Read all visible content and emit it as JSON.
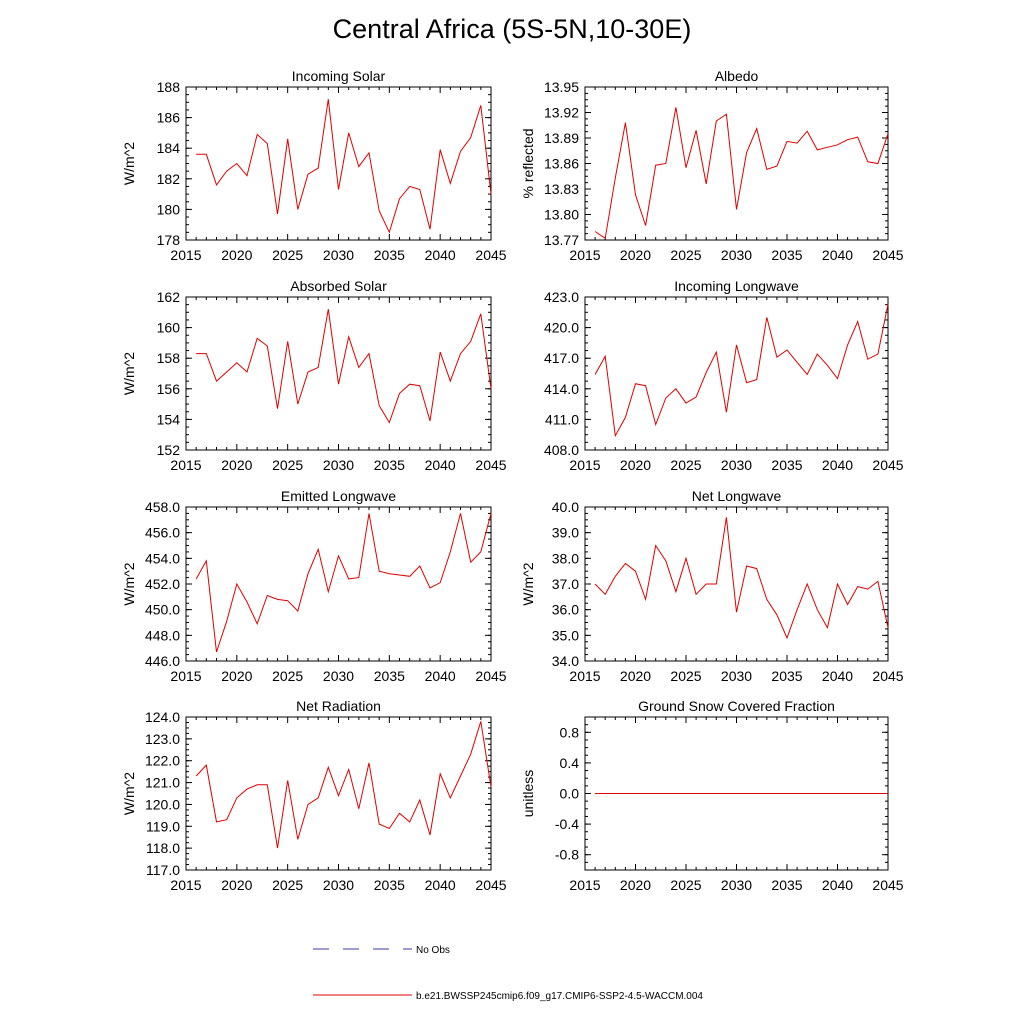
{
  "title": "Central Africa (5S-5N,10-30E)",
  "legend": {
    "obs_label": "No Obs",
    "obs_color": "#3a3aa0",
    "model_label": "b.e21.BWSSP245cmip6.f09_g17.CMIP6-SSP2-4.5-WACCM.004",
    "model_color": "#e00000"
  },
  "chart_data": [
    {
      "type": "line",
      "title": "Incoming Solar",
      "ylabel": "W/m^2",
      "xlim": [
        2015,
        2045
      ],
      "ylim": [
        178,
        188
      ],
      "xticks": [
        2015,
        2020,
        2025,
        2030,
        2035,
        2040,
        2045
      ],
      "yticks": [
        "178",
        "180",
        "182",
        "184",
        "186",
        "188"
      ],
      "x": [
        2016,
        2017,
        2018,
        2019,
        2020,
        2021,
        2022,
        2023,
        2024,
        2025,
        2026,
        2027,
        2028,
        2029,
        2030,
        2031,
        2032,
        2033,
        2034,
        2035,
        2036,
        2037,
        2038,
        2039,
        2040,
        2041,
        2042,
        2043,
        2044,
        2045
      ],
      "series": [
        {
          "values": [
            183.6,
            183.6,
            181.6,
            182.5,
            183.0,
            182.2,
            184.9,
            184.3,
            179.7,
            184.6,
            180.0,
            182.3,
            182.7,
            187.2,
            181.3,
            185.0,
            182.8,
            183.7,
            179.9,
            178.5,
            180.7,
            181.5,
            181.3,
            178.7,
            183.9,
            181.7,
            183.8,
            184.7,
            186.8,
            181.0
          ]
        }
      ]
    },
    {
      "type": "line",
      "title": "Albedo",
      "ylabel": "% reflected",
      "xlim": [
        2015,
        2045
      ],
      "ylim": [
        13.77,
        13.95
      ],
      "xticks": [
        2015,
        2020,
        2025,
        2030,
        2035,
        2040,
        2045
      ],
      "yticks": [
        "13.77",
        "13.80",
        "13.83",
        "13.86",
        "13.89",
        "13.92",
        "13.95"
      ],
      "x": [
        2016,
        2017,
        2018,
        2019,
        2020,
        2021,
        2022,
        2023,
        2024,
        2025,
        2026,
        2027,
        2028,
        2029,
        2030,
        2031,
        2032,
        2033,
        2034,
        2035,
        2036,
        2037,
        2038,
        2039,
        2040,
        2041,
        2042,
        2043,
        2044,
        2045
      ],
      "series": [
        {
          "values": [
            13.78,
            13.772,
            13.843,
            13.908,
            13.823,
            13.787,
            13.858,
            13.86,
            13.926,
            13.855,
            13.899,
            13.836,
            13.91,
            13.918,
            13.806,
            13.873,
            13.901,
            13.853,
            13.857,
            13.886,
            13.884,
            13.898,
            13.876,
            13.879,
            13.882,
            13.888,
            13.891,
            13.862,
            13.86,
            13.895
          ]
        }
      ]
    },
    {
      "type": "line",
      "title": "Absorbed Solar",
      "ylabel": "W/m^2",
      "xlim": [
        2015,
        2045
      ],
      "ylim": [
        152,
        162
      ],
      "xticks": [
        2015,
        2020,
        2025,
        2030,
        2035,
        2040,
        2045
      ],
      "yticks": [
        "152",
        "154",
        "156",
        "158",
        "160",
        "162"
      ],
      "x": [
        2016,
        2017,
        2018,
        2019,
        2020,
        2021,
        2022,
        2023,
        2024,
        2025,
        2026,
        2027,
        2028,
        2029,
        2030,
        2031,
        2032,
        2033,
        2034,
        2035,
        2036,
        2037,
        2038,
        2039,
        2040,
        2041,
        2042,
        2043,
        2044,
        2045
      ],
      "series": [
        {
          "values": [
            158.3,
            158.3,
            156.5,
            157.1,
            157.7,
            157.1,
            159.3,
            158.8,
            154.7,
            159.1,
            155.0,
            157.1,
            157.4,
            161.2,
            156.3,
            159.4,
            157.4,
            158.3,
            154.9,
            153.8,
            155.7,
            156.3,
            156.2,
            153.9,
            158.4,
            156.5,
            158.3,
            159.1,
            160.9,
            156.0
          ]
        }
      ]
    },
    {
      "type": "line",
      "title": "Incoming Longwave",
      "ylabel": "",
      "xlim": [
        2015,
        2045
      ],
      "ylim": [
        408.0,
        423.0
      ],
      "xticks": [
        2015,
        2020,
        2025,
        2030,
        2035,
        2040,
        2045
      ],
      "yticks": [
        "408.0",
        "411.0",
        "414.0",
        "417.0",
        "420.0",
        "423.0"
      ],
      "x": [
        2016,
        2017,
        2018,
        2019,
        2020,
        2021,
        2022,
        2023,
        2024,
        2025,
        2026,
        2027,
        2028,
        2029,
        2030,
        2031,
        2032,
        2033,
        2034,
        2035,
        2036,
        2037,
        2038,
        2039,
        2040,
        2041,
        2042,
        2043,
        2044,
        2045
      ],
      "series": [
        {
          "values": [
            415.4,
            417.2,
            409.4,
            411.2,
            414.5,
            414.3,
            410.5,
            413.1,
            414.0,
            412.6,
            413.2,
            415.6,
            417.6,
            411.7,
            418.3,
            414.6,
            414.9,
            421.0,
            417.1,
            417.8,
            416.6,
            415.4,
            417.4,
            416.3,
            415.0,
            418.3,
            420.6,
            416.9,
            417.4,
            422.3
          ]
        }
      ]
    },
    {
      "type": "line",
      "title": "Emitted Longwave",
      "ylabel": "W/m^2",
      "xlim": [
        2015,
        2045
      ],
      "ylim": [
        446.0,
        458.0
      ],
      "xticks": [
        2015,
        2020,
        2025,
        2030,
        2035,
        2040,
        2045
      ],
      "yticks": [
        "446.0",
        "448.0",
        "450.0",
        "452.0",
        "454.0",
        "456.0",
        "458.0"
      ],
      "x": [
        2016,
        2017,
        2018,
        2019,
        2020,
        2021,
        2022,
        2023,
        2024,
        2025,
        2026,
        2027,
        2028,
        2029,
        2030,
        2031,
        2032,
        2033,
        2034,
        2035,
        2036,
        2037,
        2038,
        2039,
        2040,
        2041,
        2042,
        2043,
        2044,
        2045
      ],
      "series": [
        {
          "values": [
            452.4,
            453.8,
            446.7,
            449.1,
            452.0,
            450.6,
            448.9,
            451.1,
            450.8,
            450.7,
            449.9,
            452.8,
            454.7,
            451.4,
            454.2,
            452.4,
            452.5,
            457.5,
            453.0,
            452.8,
            452.7,
            452.6,
            453.4,
            451.7,
            452.1,
            454.5,
            457.5,
            453.7,
            454.5,
            457.5
          ]
        }
      ]
    },
    {
      "type": "line",
      "title": "Net Longwave",
      "ylabel": "W/m^2",
      "xlim": [
        2015,
        2045
      ],
      "ylim": [
        34.0,
        40.0
      ],
      "xticks": [
        2015,
        2020,
        2025,
        2030,
        2035,
        2040,
        2045
      ],
      "yticks": [
        "34.0",
        "35.0",
        "36.0",
        "37.0",
        "38.0",
        "39.0",
        "40.0"
      ],
      "x": [
        2016,
        2017,
        2018,
        2019,
        2020,
        2021,
        2022,
        2023,
        2024,
        2025,
        2026,
        2027,
        2028,
        2029,
        2030,
        2031,
        2032,
        2033,
        2034,
        2035,
        2036,
        2037,
        2038,
        2039,
        2040,
        2041,
        2042,
        2043,
        2044,
        2045
      ],
      "series": [
        {
          "values": [
            37.0,
            36.6,
            37.3,
            37.8,
            37.5,
            36.4,
            38.5,
            37.9,
            36.7,
            38.0,
            36.6,
            37.0,
            37.0,
            39.6,
            35.9,
            37.7,
            37.6,
            36.4,
            35.8,
            34.9,
            36.0,
            37.0,
            36.0,
            35.3,
            37.0,
            36.2,
            36.9,
            36.8,
            37.1,
            35.3
          ]
        }
      ]
    },
    {
      "type": "line",
      "title": "Net Radiation",
      "ylabel": "W/m^2",
      "xlim": [
        2015,
        2045
      ],
      "ylim": [
        117.0,
        124.0
      ],
      "xticks": [
        2015,
        2020,
        2025,
        2030,
        2035,
        2040,
        2045
      ],
      "yticks": [
        "117.0",
        "118.0",
        "119.0",
        "120.0",
        "121.0",
        "122.0",
        "123.0",
        "124.0"
      ],
      "x": [
        2016,
        2017,
        2018,
        2019,
        2020,
        2021,
        2022,
        2023,
        2024,
        2025,
        2026,
        2027,
        2028,
        2029,
        2030,
        2031,
        2032,
        2033,
        2034,
        2035,
        2036,
        2037,
        2038,
        2039,
        2040,
        2041,
        2042,
        2043,
        2044,
        2045
      ],
      "series": [
        {
          "values": [
            121.3,
            121.8,
            119.2,
            119.3,
            120.3,
            120.7,
            120.9,
            120.9,
            118.0,
            121.1,
            118.4,
            120.0,
            120.3,
            121.7,
            120.4,
            121.6,
            119.8,
            121.9,
            119.1,
            118.9,
            119.6,
            119.2,
            120.2,
            118.6,
            121.4,
            120.3,
            121.3,
            122.3,
            123.8,
            120.8
          ]
        }
      ]
    },
    {
      "type": "line",
      "title": "Ground Snow Covered Fraction",
      "ylabel": "unitless",
      "xlim": [
        2015,
        2045
      ],
      "ylim": [
        -1.0,
        1.0
      ],
      "xticks": [
        2015,
        2020,
        2025,
        2030,
        2035,
        2040,
        2045
      ],
      "yticks": [
        "-0.8",
        "-0.4",
        "0.0",
        "0.4",
        "0.8"
      ],
      "x": [
        2016,
        2017,
        2018,
        2019,
        2020,
        2021,
        2022,
        2023,
        2024,
        2025,
        2026,
        2027,
        2028,
        2029,
        2030,
        2031,
        2032,
        2033,
        2034,
        2035,
        2036,
        2037,
        2038,
        2039,
        2040,
        2041,
        2042,
        2043,
        2044,
        2045
      ],
      "series": [
        {
          "values": [
            0,
            0,
            0,
            0,
            0,
            0,
            0,
            0,
            0,
            0,
            0,
            0,
            0,
            0,
            0,
            0,
            0,
            0,
            0,
            0,
            0,
            0,
            0,
            0,
            0,
            0,
            0,
            0,
            0,
            0
          ]
        }
      ]
    }
  ]
}
